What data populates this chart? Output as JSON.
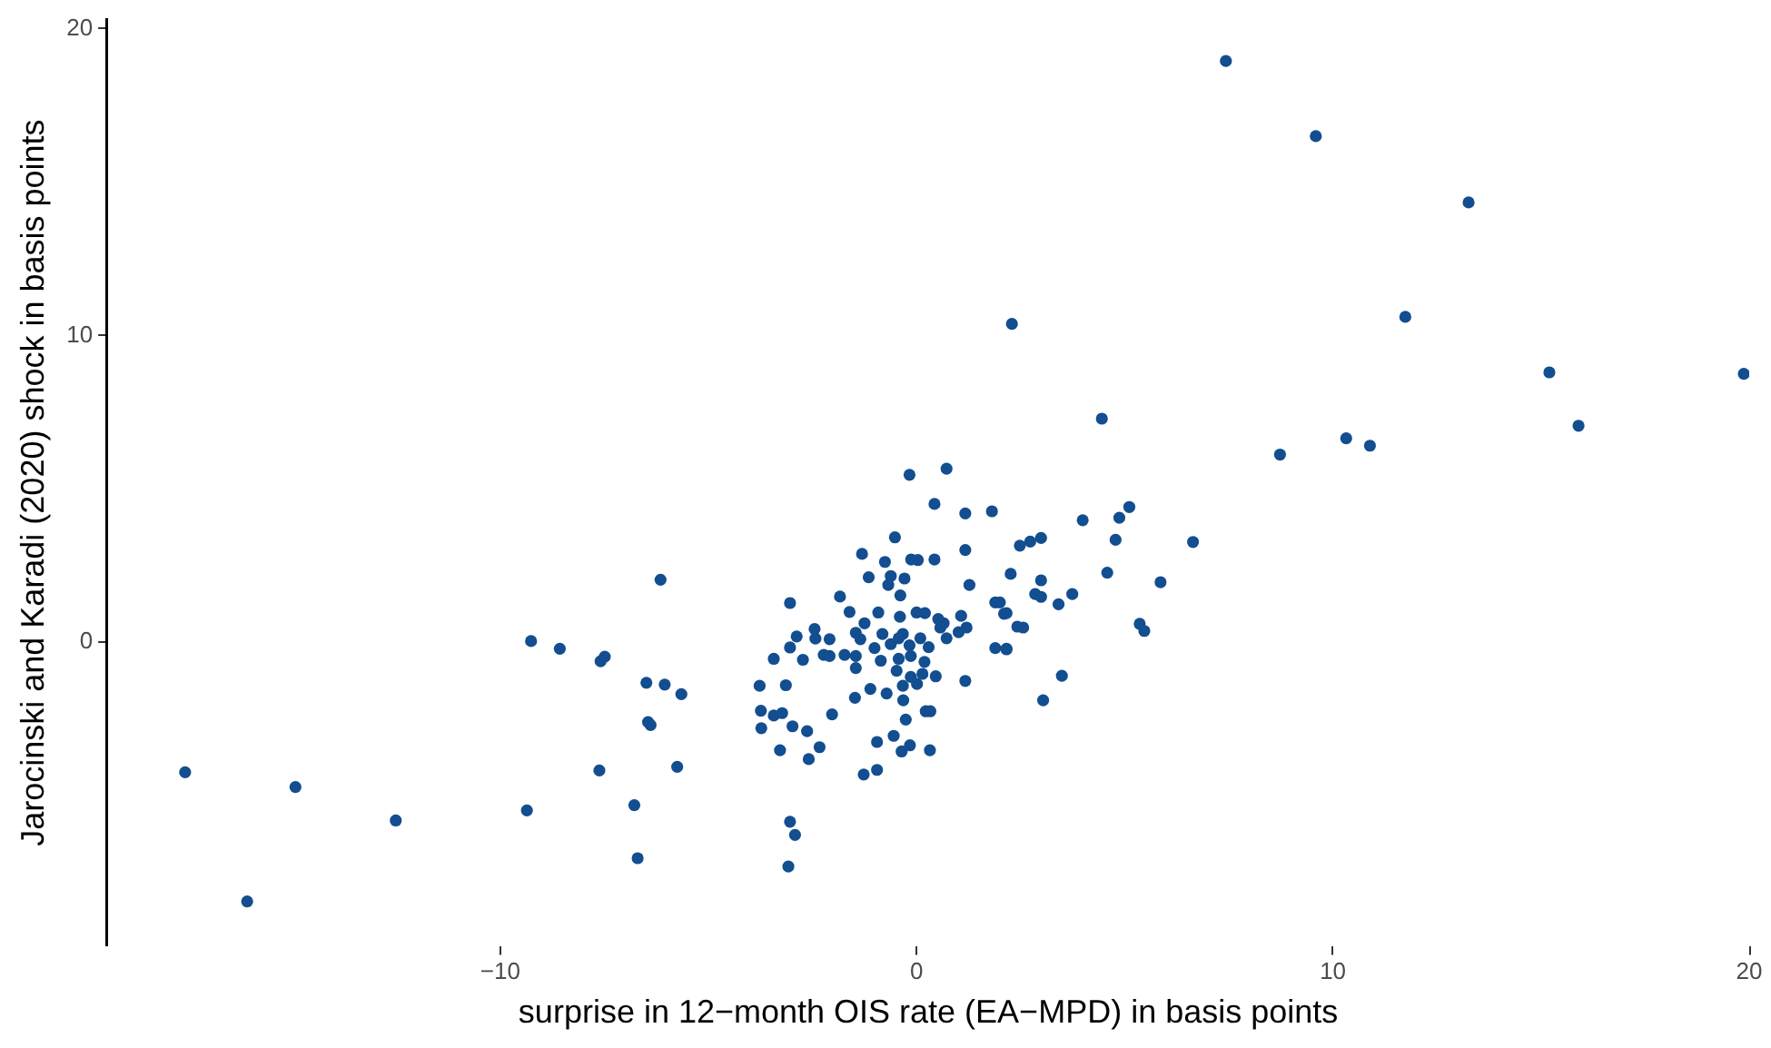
{
  "chart_data": {
    "type": "scatter",
    "xlabel": "surprise in 12−month OIS rate (EA−MPD) in basis points",
    "ylabel": "Jarocinski and Karadi (2020) shock in basis points",
    "xlim": [
      -19.44,
      20
    ],
    "ylim": [
      -9.9,
      20.3
    ],
    "xticks": [
      -10,
      0,
      10,
      20
    ],
    "yticks": [
      0,
      10,
      20
    ],
    "grid": false,
    "legend": false,
    "marker": "circle",
    "series": [
      {
        "color": "#124e90",
        "x": [
          7.43,
          9.59,
          13.26,
          2.29,
          11.74,
          15.2,
          19.87,
          15.9,
          10.32,
          10.89,
          8.73,
          4.45,
          3.99,
          4.87,
          5.11,
          4.78,
          6.64,
          4.58,
          5.86,
          5.36,
          5.47,
          2.99,
          2.73,
          2.48,
          2.26,
          2.99,
          2.85,
          2.99,
          3.74,
          3.41,
          2.42,
          2.56,
          2.16,
          2.16,
          3.49,
          -0.17,
          0.72,
          0.43,
          1.17,
          1.81,
          -0.52,
          1.17,
          -1.31,
          -0.76,
          -0.13,
          0.03,
          0.43,
          -1.15,
          -0.62,
          -0.29,
          -0.68,
          -1.84,
          -0.39,
          1.27,
          -3.04,
          1.89,
          2.0,
          -1.61,
          -0.92,
          -1.25,
          -0.4,
          0.0,
          0.2,
          0.52,
          0.65,
          1.07,
          2.1,
          -2.45,
          -2.88,
          -1.46,
          -0.82,
          -0.33,
          0.09,
          0.57,
          1.2,
          -2.43,
          -2.09,
          -3.04,
          -1.35,
          -1.01,
          -0.62,
          -0.43,
          -0.17,
          0.29,
          0.72,
          1.01,
          -3.43,
          -2.73,
          -2.23,
          -2.09,
          -1.73,
          -1.46,
          -0.86,
          -0.43,
          -0.14,
          0.19,
          1.89,
          2.16,
          -1.46,
          -0.48,
          -0.14,
          0.14,
          0.46,
          -3.77,
          -3.14,
          -1.11,
          -0.72,
          -0.33,
          0.01,
          1.17,
          -1.48,
          -0.32,
          3.04,
          -3.74,
          -3.43,
          -3.23,
          -2.03,
          0.22,
          0.33,
          -3.73,
          -2.98,
          -2.63,
          -0.26,
          -0.55,
          -0.95,
          -2.33,
          -3.28,
          -2.59,
          -0.16,
          -0.36,
          0.32,
          -1.27,
          -0.95,
          -3.04,
          -6.15,
          -9.26,
          -8.57,
          -7.49,
          -7.59,
          -6.49,
          -6.05,
          -5.65,
          -6.45,
          -6.39,
          -5.75,
          -7.62,
          -6.78,
          -6.7,
          -9.36,
          -12.51,
          -14.92,
          -17.57,
          -16.08,
          -2.92,
          -3.08
        ],
        "values": [
          18.95,
          16.5,
          14.34,
          10.38,
          10.61,
          8.8,
          8.75,
          7.06,
          6.65,
          6.41,
          6.12,
          7.29,
          3.98,
          4.06,
          4.41,
          3.34,
          3.27,
          2.27,
          1.96,
          0.6,
          0.37,
          3.4,
          3.28,
          3.15,
          2.23,
          2.02,
          1.57,
          1.48,
          1.57,
          1.24,
          0.51,
          0.48,
          0.95,
          -0.21,
          -1.09,
          5.46,
          5.66,
          4.51,
          4.2,
          4.27,
          3.42,
          3.01,
          2.88,
          2.62,
          2.7,
          2.68,
          2.7,
          2.12,
          2.16,
          2.08,
          1.87,
          1.49,
          1.53,
          1.87,
          1.28,
          1.3,
          1.3,
          0.99,
          0.97,
          0.62,
          0.83,
          0.97,
          0.95,
          0.76,
          0.62,
          0.86,
          0.93,
          0.43,
          0.19,
          0.31,
          0.27,
          0.27,
          0.13,
          0.48,
          0.48,
          0.12,
          0.1,
          -0.17,
          0.1,
          -0.19,
          -0.06,
          0.13,
          -0.1,
          -0.16,
          0.13,
          0.33,
          -0.54,
          -0.57,
          -0.41,
          -0.45,
          -0.41,
          -0.45,
          -0.6,
          -0.54,
          -0.45,
          -0.64,
          -0.19,
          -0.23,
          -0.84,
          -0.93,
          -1.13,
          -1.03,
          -1.11,
          -1.42,
          -1.4,
          -1.52,
          -1.67,
          -1.42,
          -1.36,
          -1.26,
          -1.81,
          -1.89,
          -1.89,
          -2.23,
          -2.39,
          -2.31,
          -2.35,
          -2.25,
          -2.25,
          -2.8,
          -2.74,
          -2.9,
          -2.52,
          -3.05,
          -3.25,
          -3.42,
          -3.52,
          -3.81,
          -3.36,
          -3.56,
          -3.52,
          -4.31,
          -4.16,
          -5.85,
          2.04,
          0.04,
          -0.21,
          -0.47,
          -0.62,
          -1.32,
          -1.38,
          -1.69,
          -2.6,
          -2.7,
          -4.06,
          -4.18,
          -5.31,
          -7.04,
          -5.48,
          -5.81,
          -4.72,
          -4.24,
          -8.45,
          -6.28,
          -7.31
        ]
      }
    ]
  }
}
